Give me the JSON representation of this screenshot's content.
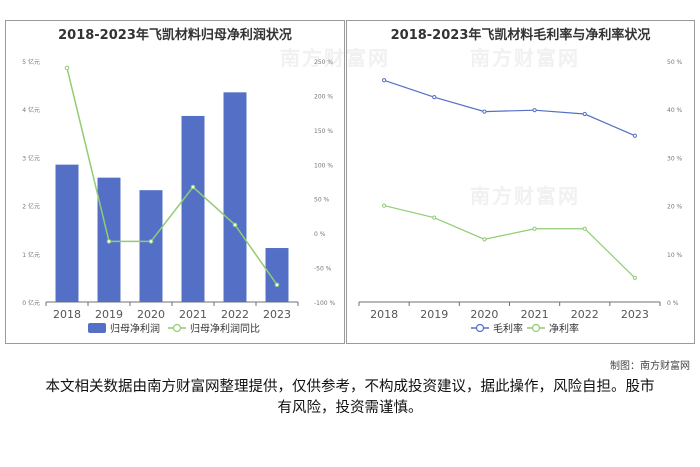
{
  "chart_data": [
    {
      "type": "bar",
      "title": "2018-2023年飞凯材料归母净利润状况",
      "categories": [
        "2018",
        "2019",
        "2020",
        "2021",
        "2022",
        "2023"
      ],
      "series": [
        {
          "name": "归母净利润",
          "type": "bar",
          "axis": "left",
          "color": "#5470c6",
          "values": [
            2.85,
            2.58,
            2.32,
            3.86,
            4.35,
            1.12
          ]
        },
        {
          "name": "归母净利润同比",
          "type": "line",
          "axis": "right",
          "color": "#91cc75",
          "values": [
            240,
            -12,
            -12,
            67,
            12,
            -75
          ]
        }
      ],
      "left_axis": {
        "ticks": [
          "0 亿元",
          "1 亿元",
          "2 亿元",
          "3 亿元",
          "4 亿元",
          "5 亿元"
        ],
        "min": 0,
        "max": 5
      },
      "right_axis": {
        "ticks": [
          "-100 %",
          "-50 %",
          "0 %",
          "50 %",
          "100 %",
          "150 %",
          "200 %",
          "250 %"
        ],
        "min": -100,
        "max": 250
      },
      "legend": "bottom"
    },
    {
      "type": "line",
      "title": "2018-2023年飞凯材料毛利率与净利率状况",
      "categories": [
        "2018",
        "2019",
        "2020",
        "2021",
        "2022",
        "2023"
      ],
      "series": [
        {
          "name": "毛利率",
          "color": "#5470c6",
          "values": [
            46,
            42.5,
            39.5,
            39.8,
            39,
            34.5
          ]
        },
        {
          "name": "净利率",
          "color": "#91cc75",
          "values": [
            20,
            17.5,
            13,
            15.2,
            15.2,
            5
          ]
        }
      ],
      "right_axis": {
        "ticks": [
          "0 %",
          "10 %",
          "20 %",
          "30 %",
          "40 %",
          "50 %"
        ],
        "min": 0,
        "max": 50
      },
      "legend": "bottom"
    }
  ],
  "credit": "制图：南方财富网",
  "disclaimer": "本文相关数据由南方财富网整理提供，仅供参考，不构成投资建议，据此操作，风险自担。股市有风险，投资需谨慎。",
  "watermark": "南方财富网"
}
